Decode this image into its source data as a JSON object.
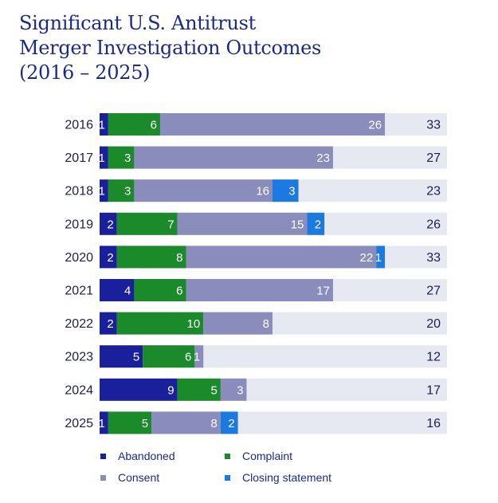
{
  "title": {
    "line1": "Significant U.S. Antitrust",
    "line2": "Merger Investigation Outcomes",
    "line3": "(2016 – 2025)"
  },
  "colors": {
    "abandoned": "#1a1f9c",
    "complaint": "#1a8a2a",
    "consent": "#8a8cbc",
    "closing": "#1a7ae0",
    "track": "#e6e8f2"
  },
  "legend": [
    {
      "key": "abandoned",
      "label": "Abandoned"
    },
    {
      "key": "complaint",
      "label": "Complaint"
    },
    {
      "key": "consent",
      "label": "Consent"
    },
    {
      "key": "closing",
      "label": "Closing statement"
    }
  ],
  "chart_data": {
    "type": "bar",
    "orientation": "horizontal",
    "stacked": true,
    "categories": [
      "2016",
      "2017",
      "2018",
      "2019",
      "2020",
      "2021",
      "2022",
      "2023",
      "2024",
      "2025"
    ],
    "series": [
      {
        "name": "Abandoned",
        "key": "abandoned",
        "values": [
          1,
          1,
          1,
          2,
          2,
          4,
          2,
          5,
          9,
          1
        ]
      },
      {
        "name": "Complaint",
        "key": "complaint",
        "values": [
          6,
          3,
          3,
          7,
          8,
          6,
          10,
          6,
          5,
          5
        ]
      },
      {
        "name": "Consent",
        "key": "consent",
        "values": [
          26,
          23,
          16,
          15,
          22,
          17,
          8,
          1,
          3,
          8
        ]
      },
      {
        "name": "Closing statement",
        "key": "closing",
        "values": [
          0,
          0,
          3,
          2,
          1,
          0,
          0,
          0,
          0,
          2
        ]
      }
    ],
    "totals": [
      33,
      27,
      23,
      26,
      33,
      27,
      20,
      12,
      17,
      16
    ],
    "xlim": [
      0,
      40
    ],
    "grid": false,
    "legend_position": "bottom"
  }
}
